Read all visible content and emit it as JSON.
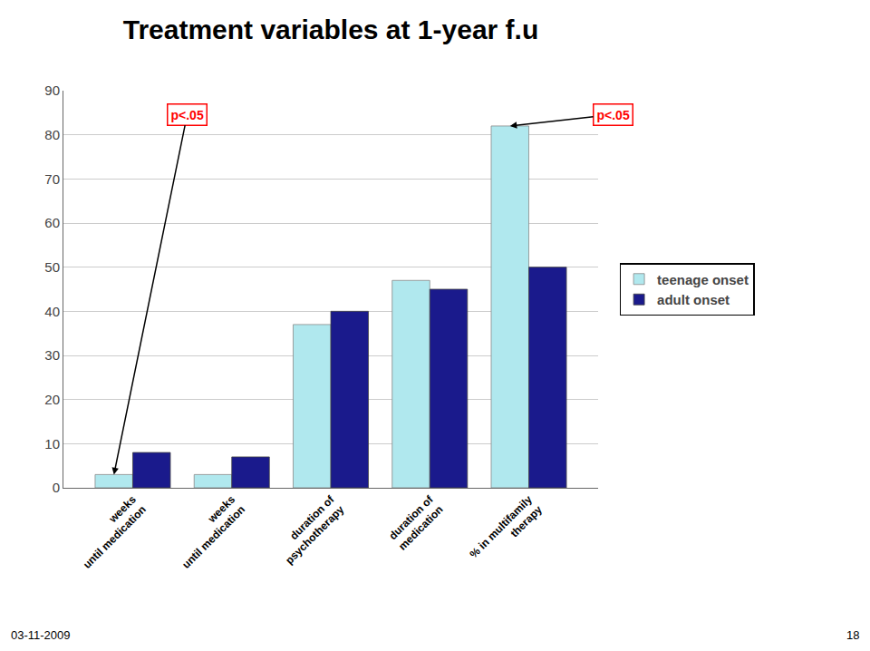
{
  "chart_data": {
    "type": "bar",
    "title": "Treatment variables at 1-year f.u",
    "categories": [
      "weeks\nuntil medication",
      "weeks\nuntil medication",
      "duration of\npsychotherapy",
      "duration of\nmedication",
      "% in multifamily\ntherapy"
    ],
    "series": [
      {
        "name": "teenage onset",
        "color": "#b0e8ee",
        "values": [
          3,
          3,
          37,
          47,
          82
        ]
      },
      {
        "name": "adult onset",
        "color": "#1a1a8c",
        "values": [
          8,
          7,
          40,
          45,
          50
        ]
      }
    ],
    "ylim": [
      0,
      90
    ],
    "yticks": [
      0,
      10,
      20,
      30,
      40,
      50,
      60,
      70,
      80,
      90
    ],
    "grid": true,
    "legend": "right",
    "annotations": [
      {
        "text": "p<.05",
        "series": "teenage onset",
        "index": 0,
        "color": "red"
      },
      {
        "text": "p<.05",
        "series": "teenage onset",
        "index": 4,
        "color": "red"
      }
    ],
    "footer": [
      "03-11-2009",
      "18"
    ]
  }
}
